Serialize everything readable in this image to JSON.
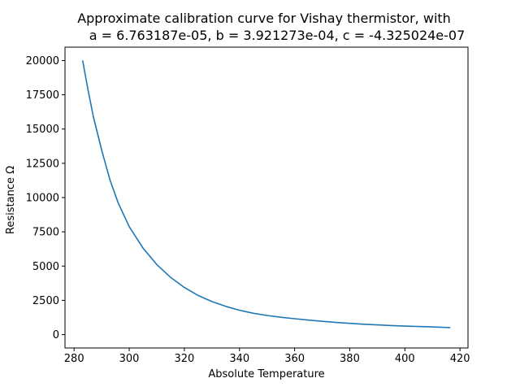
{
  "chart_data": {
    "type": "line",
    "title": "Approximate calibration curve for Vishay thermistor, with",
    "subtitle": "a = 6.763187e-05, b = 3.921273e-04, c = -4.325024e-07",
    "xlabel": "Absolute Temperature",
    "ylabel": "Resistance Ω",
    "xlim": [
      276.7,
      422.9
    ],
    "ylim": [
      -975,
      20975
    ],
    "xticks": [
      280,
      300,
      320,
      340,
      360,
      380,
      400,
      420
    ],
    "yticks": [
      0,
      2500,
      5000,
      7500,
      10000,
      12500,
      15000,
      17500,
      20000
    ],
    "grid": false,
    "colors": {
      "line": "#1f77b4",
      "axes": "#000000"
    },
    "series": [
      {
        "x": [
          283.1,
          285,
          287,
          290,
          293,
          296,
          300,
          305,
          310,
          315,
          320,
          325,
          330,
          335,
          340,
          345,
          350,
          355,
          360,
          365,
          370,
          375,
          380,
          385,
          390,
          395,
          400,
          405,
          410,
          416.5
        ],
        "y": [
          20000,
          17900,
          15900,
          13470,
          11300,
          9600,
          7880,
          6310,
          5110,
          4180,
          3440,
          2860,
          2410,
          2060,
          1780,
          1560,
          1400,
          1270,
          1160,
          1060,
          970,
          890,
          820,
          760,
          710,
          660,
          620,
          590,
          560,
          510
        ]
      }
    ]
  }
}
